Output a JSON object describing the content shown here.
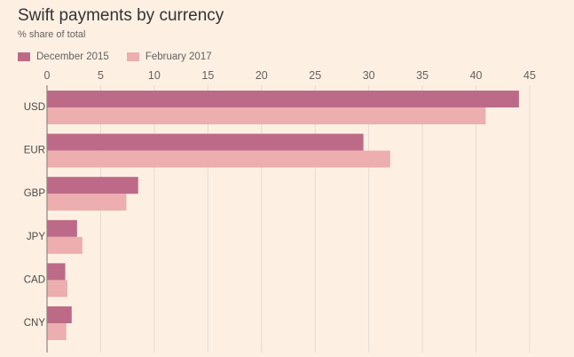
{
  "chart_data": {
    "type": "bar",
    "orientation": "horizontal",
    "title": "Swift payments by currency",
    "subtitle": "% share of total",
    "categories": [
      "USD",
      "EUR",
      "GBP",
      "JPY",
      "CAD",
      "CNY"
    ],
    "series": [
      {
        "name": "December 2015",
        "color": "#bd6a88",
        "values": [
          44.0,
          29.5,
          8.5,
          2.8,
          1.7,
          2.3
        ]
      },
      {
        "name": "February 2017",
        "color": "#ecaeae",
        "values": [
          40.9,
          32.0,
          7.4,
          3.3,
          1.9,
          1.8
        ]
      }
    ],
    "xlim": [
      0,
      45
    ],
    "xticks": [
      0,
      5,
      10,
      15,
      20,
      25,
      30,
      35,
      40,
      45
    ],
    "grid": true,
    "legend_position": "top-left"
  }
}
